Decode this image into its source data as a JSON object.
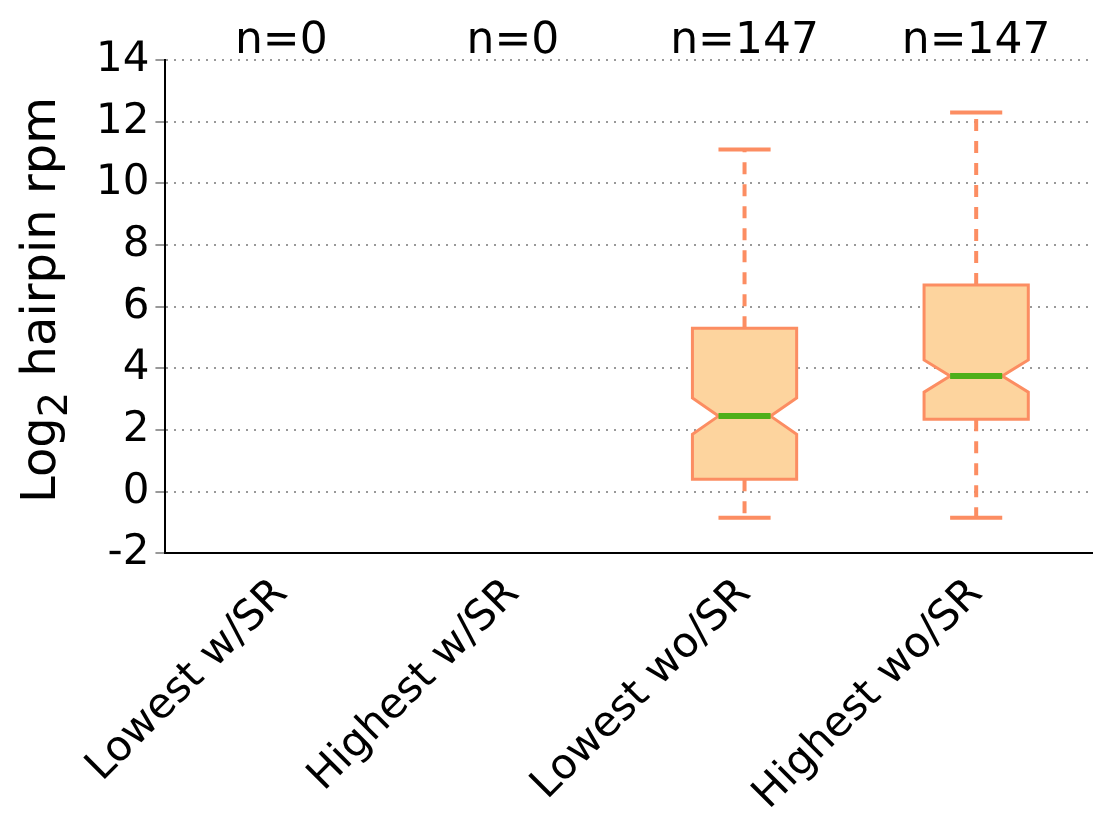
{
  "chart_data": {
    "type": "box",
    "ylabel": "Log$_{2}$ hairpin rpm",
    "categories": [
      "Lowest w/SR",
      "Highest w/SR",
      "Lowest wo/SR",
      "Highest wo/SR"
    ],
    "boxes": [
      null,
      null,
      {
        "low": -0.85,
        "q1": 0.4,
        "median": 2.45,
        "q3": 5.3,
        "high": 11.1
      },
      {
        "low": -0.85,
        "q1": 2.35,
        "median": 3.75,
        "q3": 6.7,
        "high": 12.3
      }
    ],
    "color": "#fdd49e",
    "ylim": [
      -2,
      14
    ],
    "yticks": [
      -2,
      0,
      2,
      4,
      6,
      8,
      10,
      12,
      14
    ],
    "grid": "y",
    "annotations": [
      "n=0",
      "n=0",
      "n=147",
      "n=147"
    ]
  }
}
